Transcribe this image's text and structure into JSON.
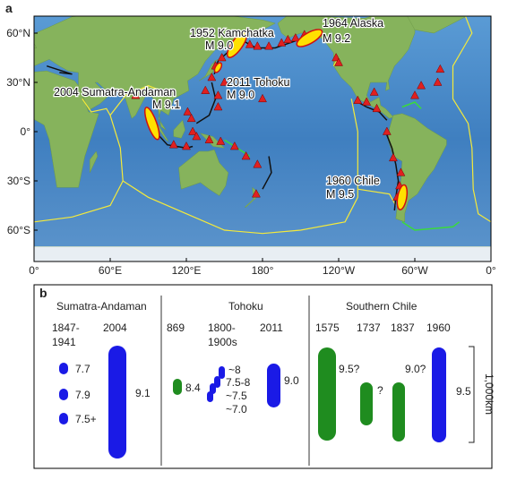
{
  "panel_a": {
    "label": "a",
    "events": [
      {
        "name": "1952 Kamchatka",
        "magnitude": "M 9.0"
      },
      {
        "name": "1964 Alaska",
        "magnitude": "M 9.2"
      },
      {
        "name": "2011 Tohoku",
        "magnitude": "M 9.0"
      },
      {
        "name": "2004 Sumatra-Andaman",
        "magnitude": "M 9.1"
      },
      {
        "name": "1960 Chile",
        "magnitude": "M 9.5"
      }
    ],
    "lat_labels": [
      "60°N",
      "30°N",
      "0°",
      "30°S",
      "60°S"
    ],
    "lon_labels": [
      "0°",
      "60°E",
      "120°E",
      "180°",
      "120°W",
      "60°W",
      "0°"
    ]
  },
  "panel_b": {
    "label": "b",
    "scale": "1,000km",
    "groups": [
      {
        "title": "Sumatra-Andaman",
        "columns": [
          {
            "year": [
              "1847-",
              "1941"
            ],
            "labels": [
              "7.7",
              "7.9",
              "7.5+"
            ]
          },
          {
            "year": [
              "2004"
            ],
            "labels": [
              "9.1"
            ]
          }
        ]
      },
      {
        "title": "Tohoku",
        "columns": [
          {
            "year": [
              "869"
            ],
            "labels": [
              "8.4"
            ]
          },
          {
            "year": [
              "1800-",
              "1900s"
            ],
            "labels": [
              "~8",
              "7.5-8",
              "~7.5",
              "~7.0"
            ]
          },
          {
            "year": [
              "2011"
            ],
            "labels": [
              "9.0"
            ]
          }
        ]
      },
      {
        "title": "Southern Chile",
        "columns": [
          {
            "year": [
              "1575"
            ],
            "labels": [
              "9.5?"
            ]
          },
          {
            "year": [
              "1737"
            ],
            "labels": [
              "?"
            ]
          },
          {
            "year": [
              "1837"
            ],
            "labels": [
              "9.0?"
            ]
          },
          {
            "year": [
              "1960"
            ],
            "labels": [
              "9.5"
            ]
          }
        ]
      }
    ]
  }
}
